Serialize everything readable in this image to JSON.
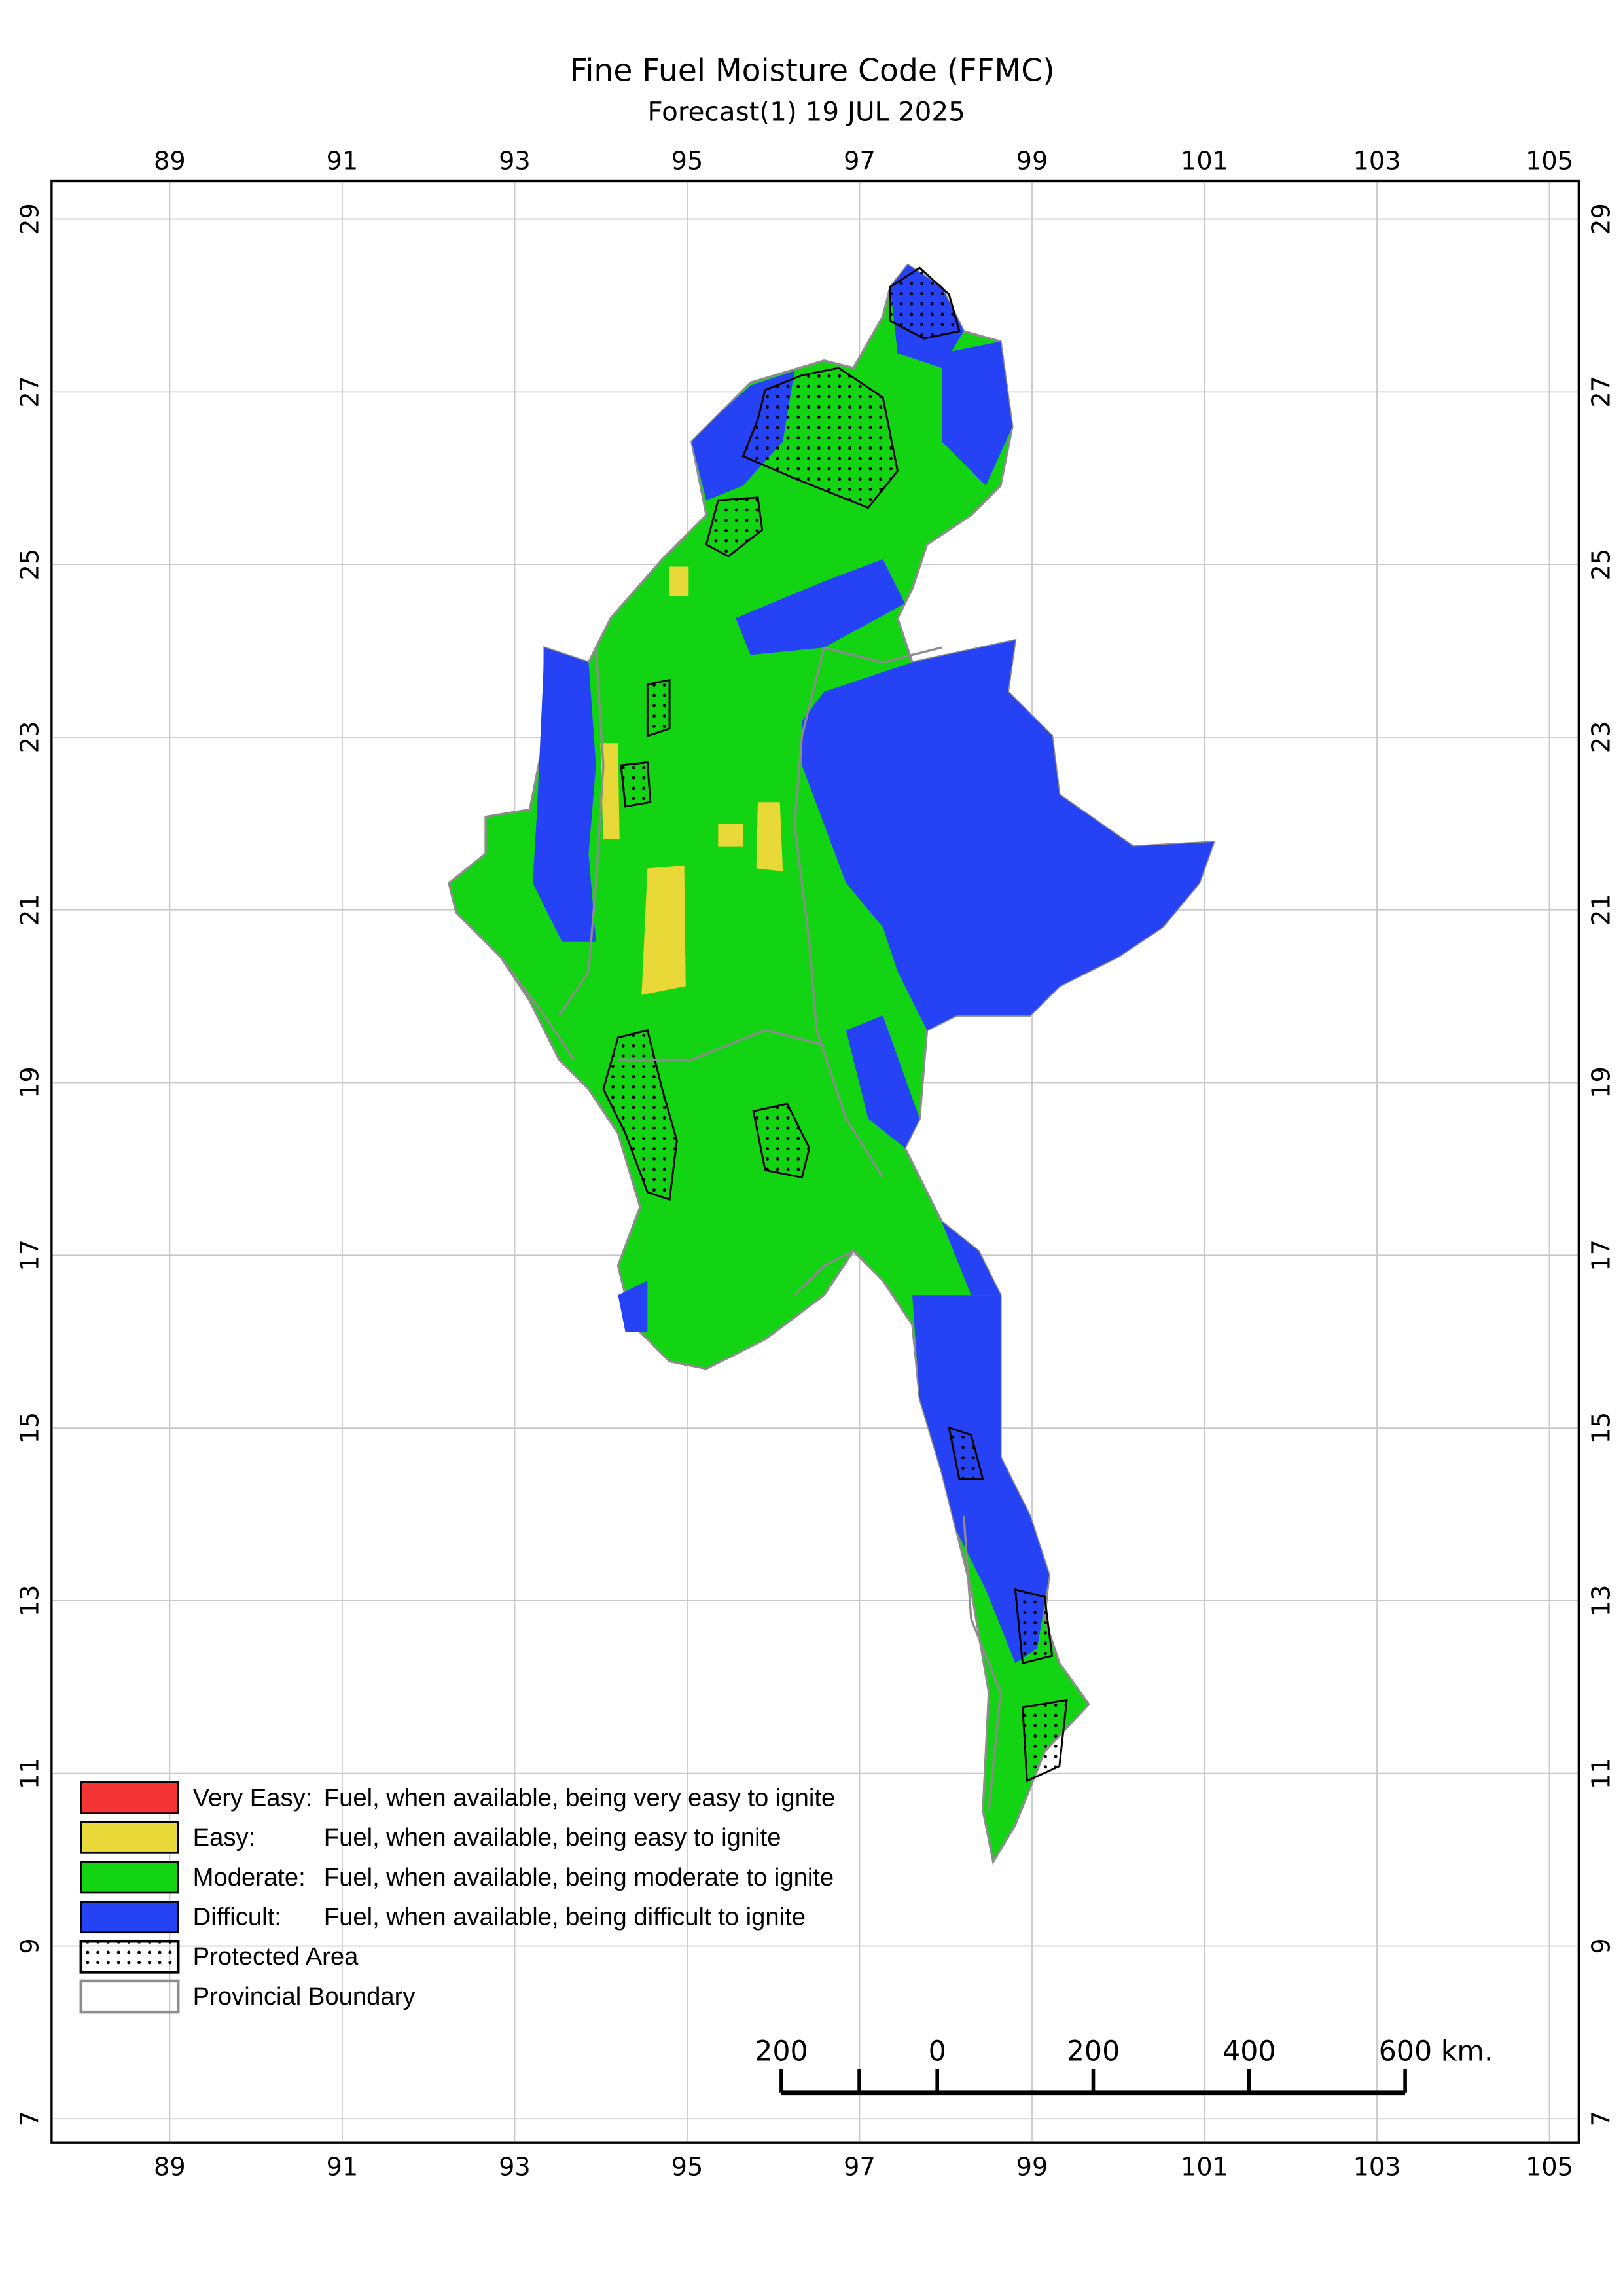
{
  "title": "Fine Fuel Moisture Code (FFMC)",
  "subtitle": "Forecast(1) 19 JUL 2025",
  "xlim": [
    87.63,
    105.34
  ],
  "ylim": [
    6.72,
    29.44
  ],
  "xticks": [
    89,
    91,
    93,
    95,
    97,
    99,
    101,
    103,
    105
  ],
  "yticks": [
    7,
    9,
    11,
    13,
    15,
    17,
    19,
    21,
    23,
    25,
    27,
    29
  ],
  "legend": [
    {
      "label": "Very Easy:",
      "description": "Fuel, when available, being very easy to ignite",
      "color": "#f53535"
    },
    {
      "label": "Easy:",
      "description": "Fuel, when available, being easy to ignite",
      "color": "#e8d838"
    },
    {
      "label": "Moderate:",
      "description": "Fuel, when available, being moderate to ignite",
      "color": "#12d412"
    },
    {
      "label": "Difficult:",
      "description": "Fuel, when available, being difficult to ignite",
      "color": "#2642f5"
    },
    {
      "label": "Protected Area"
    },
    {
      "label": "Provincial Boundary"
    }
  ],
  "scale_bar": {
    "ticks": [
      {
        "value": -200,
        "label": "200"
      },
      0,
      200,
      400,
      {
        "value": 600,
        "label": "600 km."
      }
    ]
  }
}
